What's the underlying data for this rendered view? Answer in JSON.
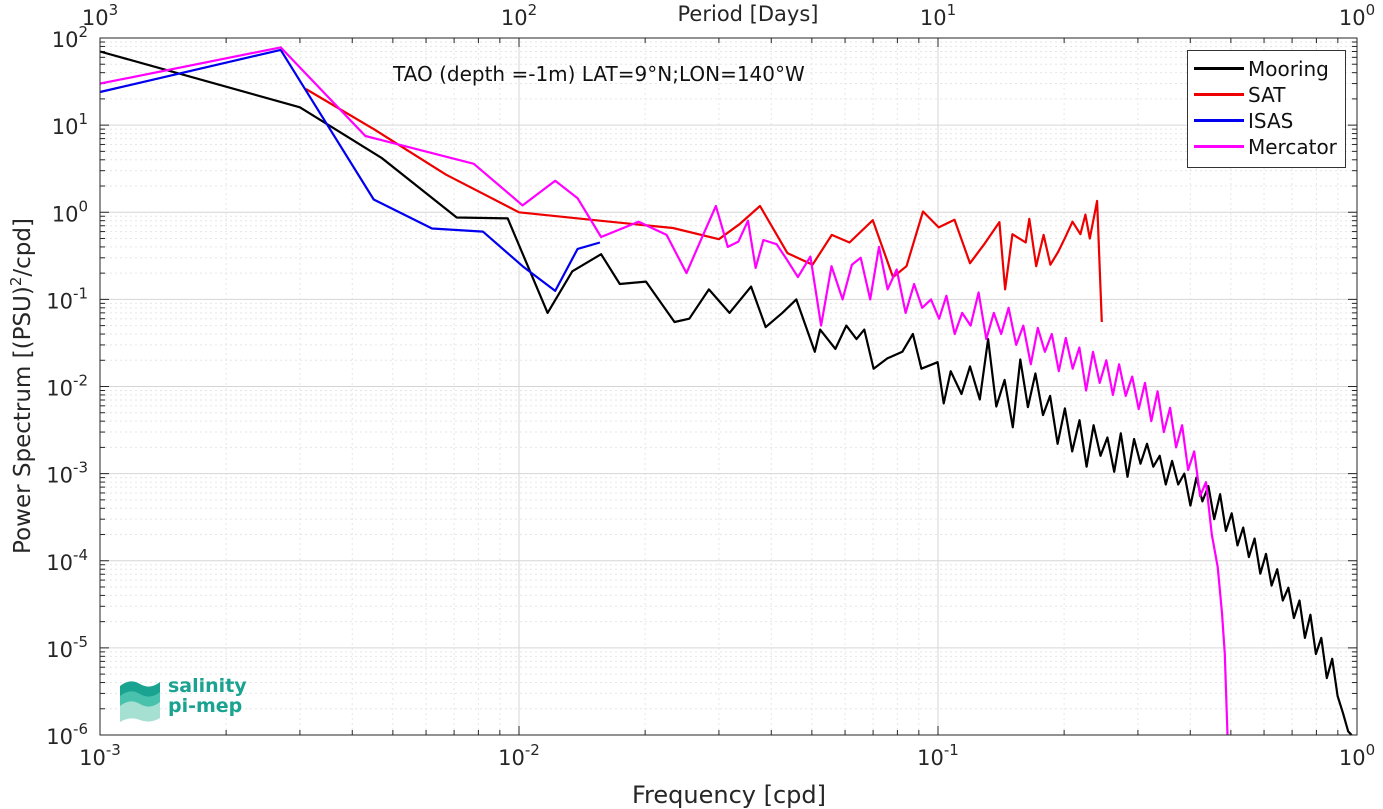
{
  "chart_data": {
    "type": "line",
    "title": "TAO (depth =-1m) LAT=9°N;LON=140°W",
    "xlabel": "Frequency [cpd]",
    "ylabel_main": "Power Spectrum [(PSU)",
    "ylabel_sup": "2",
    "ylabel_tail": "/cpd]",
    "top_xlabel": "Period [Days]",
    "x_scale": "log",
    "y_scale": "log",
    "xlim": [
      0.001,
      1
    ],
    "ylim": [
      1e-06,
      100
    ],
    "grid": true,
    "legend_position": "top-right",
    "x_ticks": [
      {
        "value": 0.001,
        "base": "10",
        "exp": "-3"
      },
      {
        "value": 0.01,
        "base": "10",
        "exp": "-2"
      },
      {
        "value": 0.1,
        "base": "10",
        "exp": "-1"
      },
      {
        "value": 1,
        "base": "10",
        "exp": "0"
      }
    ],
    "top_ticks": [
      {
        "value": 0.001,
        "base": "10",
        "exp": "3"
      },
      {
        "value": 0.01,
        "base": "10",
        "exp": "2"
      },
      {
        "value": 0.1,
        "base": "10",
        "exp": "1"
      },
      {
        "value": 1,
        "base": "10",
        "exp": "0"
      }
    ],
    "y_ticks": [
      {
        "value": 100,
        "base": "10",
        "exp": "2"
      },
      {
        "value": 10,
        "base": "10",
        "exp": "1"
      },
      {
        "value": 1,
        "base": "10",
        "exp": "0"
      },
      {
        "value": 0.1,
        "base": "10",
        "exp": "-1"
      },
      {
        "value": 0.01,
        "base": "10",
        "exp": "-2"
      },
      {
        "value": 0.001,
        "base": "10",
        "exp": "-3"
      },
      {
        "value": 0.0001,
        "base": "10",
        "exp": "-4"
      },
      {
        "value": 1e-05,
        "base": "10",
        "exp": "-5"
      },
      {
        "value": 1e-06,
        "base": "10",
        "exp": "-6"
      }
    ],
    "series": [
      {
        "name": "Mooring",
        "color": "#000000",
        "points": [
          [
            0.001,
            70
          ],
          [
            0.003,
            16
          ],
          [
            0.0047,
            4.2
          ],
          [
            0.0071,
            0.87
          ],
          [
            0.0094,
            0.85
          ],
          [
            0.0117,
            0.07
          ],
          [
            0.0134,
            0.21
          ],
          [
            0.0157,
            0.33
          ],
          [
            0.0174,
            0.15
          ],
          [
            0.0201,
            0.16
          ],
          [
            0.0235,
            0.055
          ],
          [
            0.0255,
            0.06
          ],
          [
            0.0284,
            0.13
          ],
          [
            0.0318,
            0.07
          ],
          [
            0.0358,
            0.14
          ],
          [
            0.0388,
            0.048
          ],
          [
            0.0425,
            0.07
          ],
          [
            0.0459,
            0.1
          ],
          [
            0.0508,
            0.025
          ],
          [
            0.0523,
            0.045
          ],
          [
            0.0569,
            0.027
          ],
          [
            0.0604,
            0.05
          ],
          [
            0.0639,
            0.035
          ],
          [
            0.0667,
            0.045
          ],
          [
            0.0702,
            0.016
          ],
          [
            0.0757,
            0.021
          ],
          [
            0.0822,
            0.025
          ],
          [
            0.0871,
            0.04
          ],
          [
            0.0913,
            0.016
          ],
          [
            0.0998,
            0.019
          ],
          [
            0.1032,
            0.0064
          ],
          [
            0.1072,
            0.015
          ],
          [
            0.1138,
            0.0082
          ],
          [
            0.1192,
            0.017
          ],
          [
            0.1258,
            0.0071
          ],
          [
            0.1317,
            0.035
          ],
          [
            0.1378,
            0.0059
          ],
          [
            0.1442,
            0.0119
          ],
          [
            0.1508,
            0.0034
          ],
          [
            0.1572,
            0.0204
          ],
          [
            0.1639,
            0.0058
          ],
          [
            0.1708,
            0.0141
          ],
          [
            0.1781,
            0.0047
          ],
          [
            0.1852,
            0.0078
          ],
          [
            0.193,
            0.0022
          ],
          [
            0.2009,
            0.0056
          ],
          [
            0.2091,
            0.0018
          ],
          [
            0.2176,
            0.0041
          ],
          [
            0.2263,
            0.0012
          ],
          [
            0.2351,
            0.0036
          ],
          [
            0.2442,
            0.0016
          ],
          [
            0.2537,
            0.0026
          ],
          [
            0.2633,
            0.00105
          ],
          [
            0.2731,
            0.0029
          ],
          [
            0.2833,
            0.00092
          ],
          [
            0.2937,
            0.0025
          ],
          [
            0.3043,
            0.0013
          ],
          [
            0.3153,
            0.0022
          ],
          [
            0.3265,
            0.0012
          ],
          [
            0.3381,
            0.0016
          ],
          [
            0.3497,
            0.00075
          ],
          [
            0.362,
            0.0014
          ],
          [
            0.3743,
            0.00075
          ],
          [
            0.3872,
            0.001
          ],
          [
            0.4003,
            0.00043
          ],
          [
            0.4138,
            0.0009
          ],
          [
            0.4276,
            0.00048
          ],
          [
            0.4419,
            0.00072
          ],
          [
            0.4563,
            0.0003
          ],
          [
            0.4712,
            0.00058
          ],
          [
            0.4866,
            0.00022
          ],
          [
            0.5024,
            0.00035
          ],
          [
            0.5185,
            0.00015
          ],
          [
            0.5352,
            0.00024
          ],
          [
            0.5522,
            0.00011
          ],
          [
            0.5698,
            0.00018
          ],
          [
            0.5878,
            7.1e-05
          ],
          [
            0.6065,
            0.00012
          ],
          [
            0.6254,
            5.2e-05
          ],
          [
            0.6449,
            8e-05
          ],
          [
            0.6651,
            3.5e-05
          ],
          [
            0.6858,
            4.9e-05
          ],
          [
            0.707,
            2.2e-05
          ],
          [
            0.729,
            3.5e-05
          ],
          [
            0.7512,
            1.3e-05
          ],
          [
            0.7742,
            2.4e-05
          ],
          [
            0.7978,
            8.5e-06
          ],
          [
            0.822,
            1.3e-05
          ],
          [
            0.8469,
            4.5e-06
          ],
          [
            0.8725,
            7.5e-06
          ],
          [
            0.8987,
            2.8e-06
          ],
          [
            0.9253,
            1.8e-06
          ],
          [
            0.9527,
            1.1e-06
          ],
          [
            0.971,
            1e-06
          ]
        ]
      },
      {
        "name": "SAT",
        "color": "#ee0000",
        "points": [
          [
            0.0031,
            26
          ],
          [
            0.0045,
            9
          ],
          [
            0.0067,
            2.7
          ],
          [
            0.01,
            1.0
          ],
          [
            0.0156,
            0.8
          ],
          [
            0.0233,
            0.66
          ],
          [
            0.03,
            0.49
          ],
          [
            0.0336,
            0.73
          ],
          [
            0.0376,
            1.18
          ],
          [
            0.0437,
            0.34
          ],
          [
            0.0502,
            0.25
          ],
          [
            0.0558,
            0.55
          ],
          [
            0.0615,
            0.45
          ],
          [
            0.0699,
            0.81
          ],
          [
            0.0781,
            0.18
          ],
          [
            0.0841,
            0.24
          ],
          [
            0.0921,
            1.02
          ],
          [
            0.1004,
            0.67
          ],
          [
            0.1095,
            0.82
          ],
          [
            0.1192,
            0.26
          ],
          [
            0.1294,
            0.44
          ],
          [
            0.1401,
            0.77
          ],
          [
            0.1446,
            0.13
          ],
          [
            0.1505,
            0.56
          ],
          [
            0.1619,
            0.45
          ],
          [
            0.1652,
            0.84
          ],
          [
            0.1715,
            0.24
          ],
          [
            0.1787,
            0.55
          ],
          [
            0.1855,
            0.25
          ],
          [
            0.1935,
            0.35
          ],
          [
            0.2011,
            0.51
          ],
          [
            0.2094,
            0.78
          ],
          [
            0.2187,
            0.56
          ],
          [
            0.2248,
            0.94
          ],
          [
            0.2303,
            0.5
          ],
          [
            0.2397,
            1.35
          ],
          [
            0.246,
            0.055
          ]
        ]
      },
      {
        "name": "ISAS",
        "color": "#0000ee",
        "points": [
          [
            0.001,
            24
          ],
          [
            0.0027,
            73
          ],
          [
            0.0045,
            1.4
          ],
          [
            0.0062,
            0.65
          ],
          [
            0.0082,
            0.6
          ],
          [
            0.0102,
            0.24
          ],
          [
            0.0122,
            0.125
          ],
          [
            0.0138,
            0.38
          ],
          [
            0.0156,
            0.45
          ]
        ]
      },
      {
        "name": "Mercator",
        "color": "#ff00ff",
        "points": [
          [
            0.001,
            30
          ],
          [
            0.0027,
            78
          ],
          [
            0.0043,
            7.5
          ],
          [
            0.0078,
            3.6
          ],
          [
            0.0102,
            1.2
          ],
          [
            0.0122,
            2.3
          ],
          [
            0.0138,
            1.45
          ],
          [
            0.0157,
            0.52
          ],
          [
            0.0193,
            0.78
          ],
          [
            0.0225,
            0.55
          ],
          [
            0.0251,
            0.2
          ],
          [
            0.0275,
            0.55
          ],
          [
            0.0295,
            1.18
          ],
          [
            0.0315,
            0.4
          ],
          [
            0.0334,
            0.46
          ],
          [
            0.0352,
            0.8
          ],
          [
            0.0367,
            0.23
          ],
          [
            0.0383,
            0.48
          ],
          [
            0.0412,
            0.43
          ],
          [
            0.0437,
            0.28
          ],
          [
            0.0463,
            0.18
          ],
          [
            0.0496,
            0.31
          ],
          [
            0.0526,
            0.05
          ],
          [
            0.0557,
            0.24
          ],
          [
            0.0592,
            0.1
          ],
          [
            0.0623,
            0.25
          ],
          [
            0.0654,
            0.3
          ],
          [
            0.0689,
            0.1
          ],
          [
            0.0723,
            0.4
          ],
          [
            0.0758,
            0.13
          ],
          [
            0.0797,
            0.22
          ],
          [
            0.0837,
            0.07
          ],
          [
            0.0877,
            0.15
          ],
          [
            0.0917,
            0.08
          ],
          [
            0.0962,
            0.1
          ],
          [
            0.1006,
            0.06
          ],
          [
            0.1047,
            0.11
          ],
          [
            0.1096,
            0.04
          ],
          [
            0.1142,
            0.07
          ],
          [
            0.1196,
            0.05
          ],
          [
            0.125,
            0.12
          ],
          [
            0.1304,
            0.035
          ],
          [
            0.1359,
            0.07
          ],
          [
            0.1415,
            0.04
          ],
          [
            0.1474,
            0.08
          ],
          [
            0.1537,
            0.03
          ],
          [
            0.1598,
            0.05
          ],
          [
            0.1665,
            0.018
          ],
          [
            0.1731,
            0.047
          ],
          [
            0.1799,
            0.025
          ],
          [
            0.1869,
            0.04
          ],
          [
            0.1942,
            0.015
          ],
          [
            0.2018,
            0.036
          ],
          [
            0.2096,
            0.016
          ],
          [
            0.2175,
            0.028
          ],
          [
            0.2257,
            0.009
          ],
          [
            0.2344,
            0.025
          ],
          [
            0.2432,
            0.011
          ],
          [
            0.2522,
            0.02
          ],
          [
            0.2614,
            0.008
          ],
          [
            0.2706,
            0.018
          ],
          [
            0.2806,
            0.0078
          ],
          [
            0.2908,
            0.013
          ],
          [
            0.3013,
            0.0055
          ],
          [
            0.3119,
            0.011
          ],
          [
            0.3229,
            0.004
          ],
          [
            0.3342,
            0.0088
          ],
          [
            0.3459,
            0.003
          ],
          [
            0.3581,
            0.0057
          ],
          [
            0.3701,
            0.002
          ],
          [
            0.3825,
            0.0036
          ],
          [
            0.3952,
            0.0011
          ],
          [
            0.4087,
            0.0018
          ],
          [
            0.4222,
            0.00055
          ],
          [
            0.4362,
            0.0008
          ],
          [
            0.4503,
            0.0002
          ],
          [
            0.4651,
            8.5e-05
          ],
          [
            0.4763,
            2.5e-05
          ],
          [
            0.4835,
            8.5e-06
          ],
          [
            0.4872,
            3e-06
          ],
          [
            0.4908,
            1e-06
          ]
        ]
      }
    ]
  },
  "logo": {
    "line1": "salinity",
    "line2": "pi-mep",
    "color": "#1aa390"
  }
}
